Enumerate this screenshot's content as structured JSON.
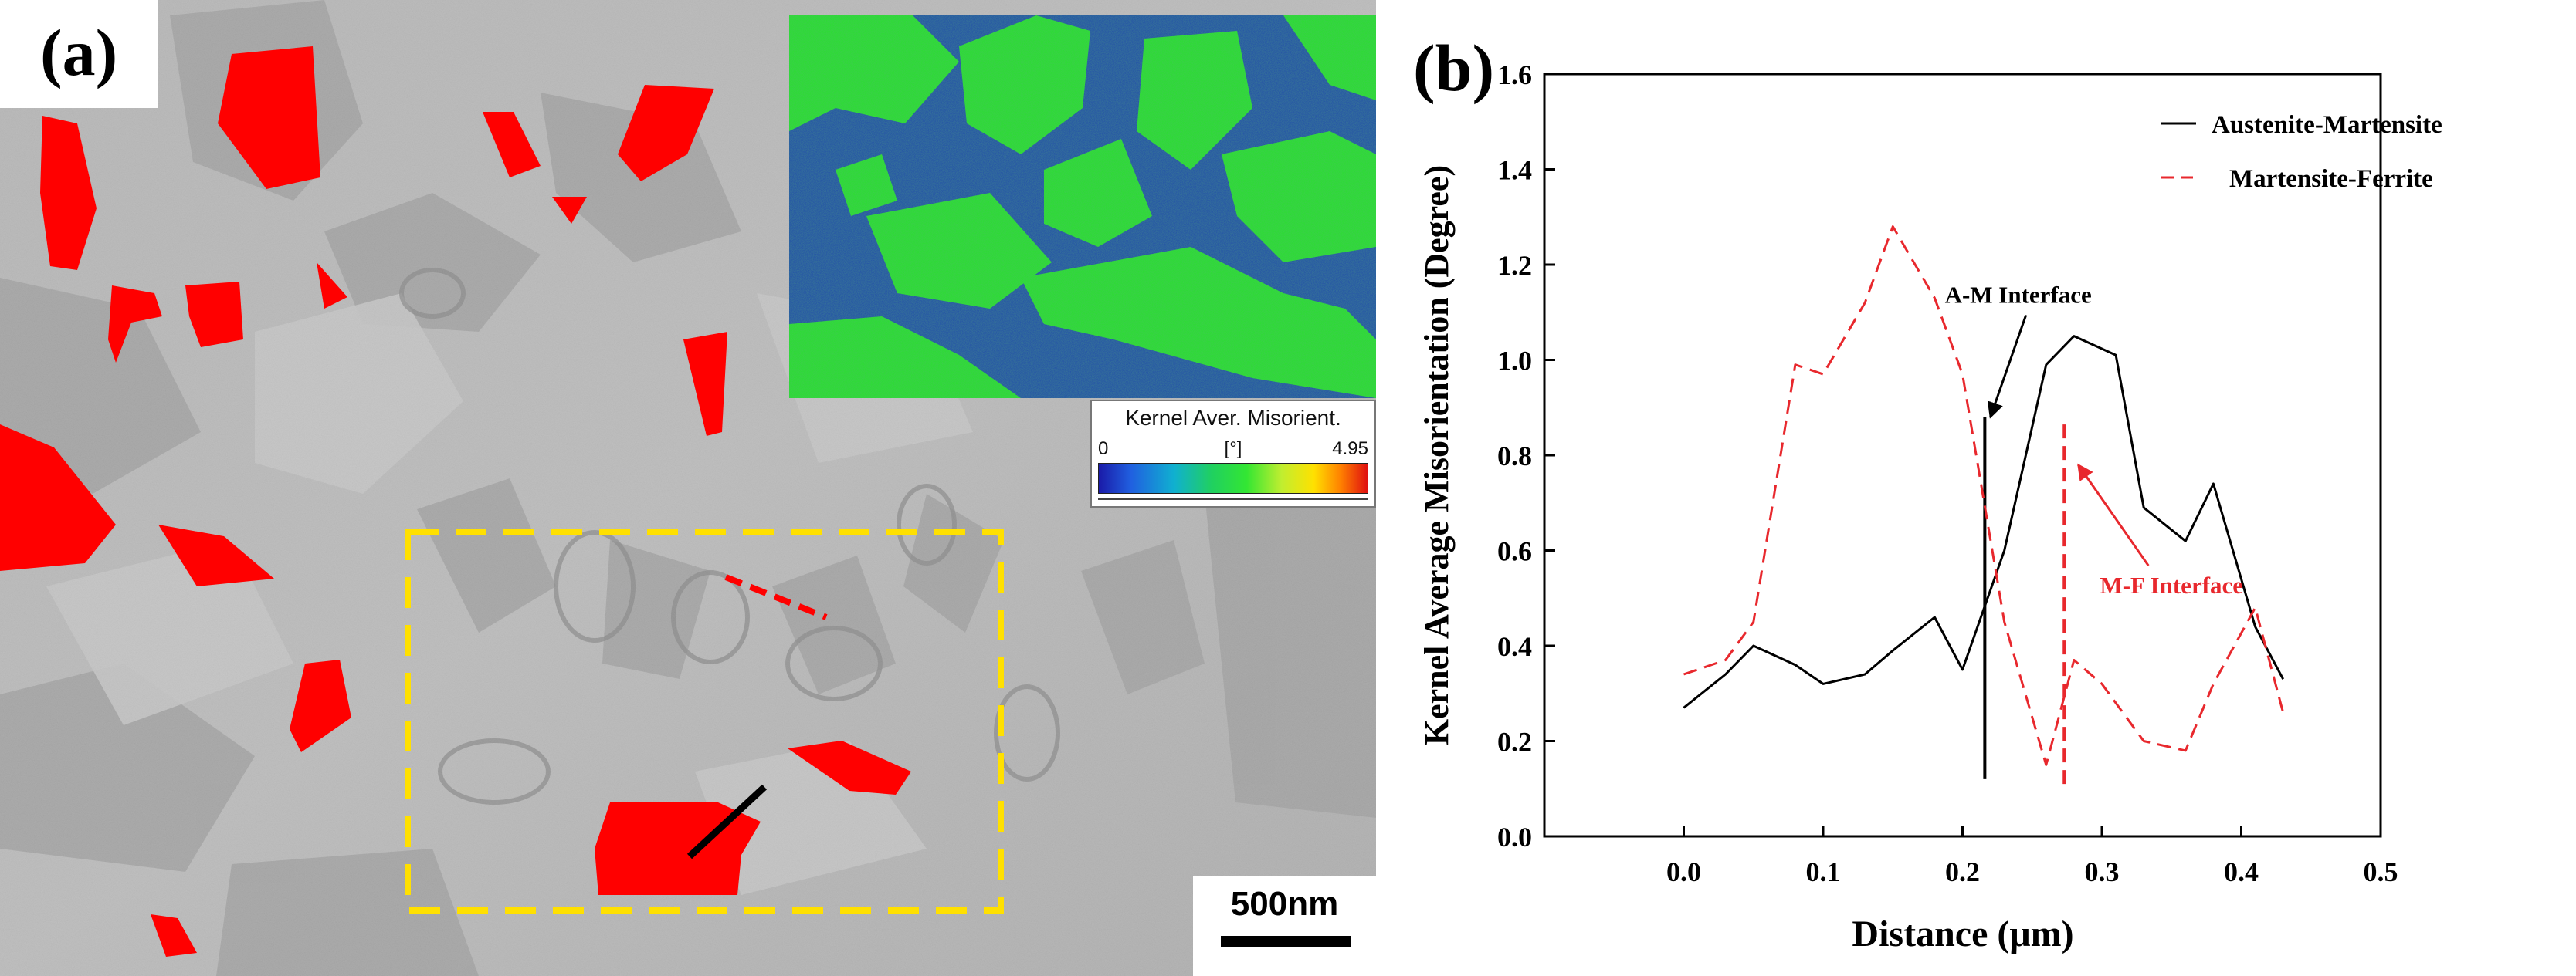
{
  "panel_a": {
    "label": "(a)",
    "colorbar": {
      "title": "Kernel Aver. Misorient.",
      "min": "0",
      "unit": "[°]",
      "max": "4.95"
    },
    "scale_bar": {
      "label": "500nm"
    },
    "colors": {
      "austenite": "#ff0000",
      "box": "#ffe000",
      "ebsd_low": "#1a3fb0",
      "ebsd_high": "#22e622"
    }
  },
  "panel_b": {
    "label": "(b)",
    "chart_data": {
      "type": "line",
      "xlabel": "Distance (μm)",
      "ylabel": "Kernel Average Misorientation (Degree)",
      "xlim": [
        -0.1,
        0.5
      ],
      "ylim": [
        0.0,
        1.6
      ],
      "x_ticks": [
        "0.0",
        "0.1",
        "0.2",
        "0.3",
        "0.4",
        "0.5"
      ],
      "y_ticks": [
        "0.0",
        "0.2",
        "0.4",
        "0.6",
        "0.8",
        "1.0",
        "1.2",
        "1.4",
        "1.6"
      ],
      "series": [
        {
          "name": "Austenite-Martensite",
          "color": "#000000",
          "style": "solid",
          "points": [
            [
              0.0,
              0.27
            ],
            [
              0.03,
              0.34
            ],
            [
              0.05,
              0.4
            ],
            [
              0.08,
              0.36
            ],
            [
              0.1,
              0.32
            ],
            [
              0.13,
              0.34
            ],
            [
              0.15,
              0.39
            ],
            [
              0.18,
              0.46
            ],
            [
              0.2,
              0.35
            ],
            [
              0.23,
              0.6
            ],
            [
              0.26,
              0.99
            ],
            [
              0.28,
              1.05
            ],
            [
              0.31,
              1.01
            ],
            [
              0.33,
              0.69
            ],
            [
              0.36,
              0.62
            ],
            [
              0.38,
              0.74
            ],
            [
              0.41,
              0.44
            ],
            [
              0.43,
              0.33
            ]
          ]
        },
        {
          "name": "Martensite-Ferrite",
          "color": "#e8282d",
          "style": "dashed",
          "points": [
            [
              0.0,
              0.34
            ],
            [
              0.03,
              0.37
            ],
            [
              0.05,
              0.45
            ],
            [
              0.08,
              0.99
            ],
            [
              0.1,
              0.97
            ],
            [
              0.13,
              1.12
            ],
            [
              0.15,
              1.28
            ],
            [
              0.18,
              1.13
            ],
            [
              0.2,
              0.97
            ],
            [
              0.23,
              0.45
            ],
            [
              0.26,
              0.15
            ],
            [
              0.28,
              0.37
            ],
            [
              0.3,
              0.32
            ],
            [
              0.33,
              0.2
            ],
            [
              0.36,
              0.18
            ],
            [
              0.38,
              0.32
            ],
            [
              0.41,
              0.48
            ],
            [
              0.43,
              0.26
            ]
          ]
        }
      ],
      "interfaces": [
        {
          "label": "A-M Interface",
          "x": 0.216,
          "y_from": 0.12,
          "y_to": 0.88,
          "color": "#000000",
          "style": "solid",
          "label_at": [
            0.24,
            1.12
          ],
          "arrow_to": [
            0.22,
            0.88
          ]
        },
        {
          "label": "M-F Interface",
          "x": 0.273,
          "y_from": 0.11,
          "y_to": 0.88,
          "color": "#e8282d",
          "style": "dashed",
          "label_at": [
            0.35,
            0.51
          ],
          "arrow_to": [
            0.283,
            0.78
          ]
        }
      ],
      "legend_position": "top-right"
    }
  }
}
